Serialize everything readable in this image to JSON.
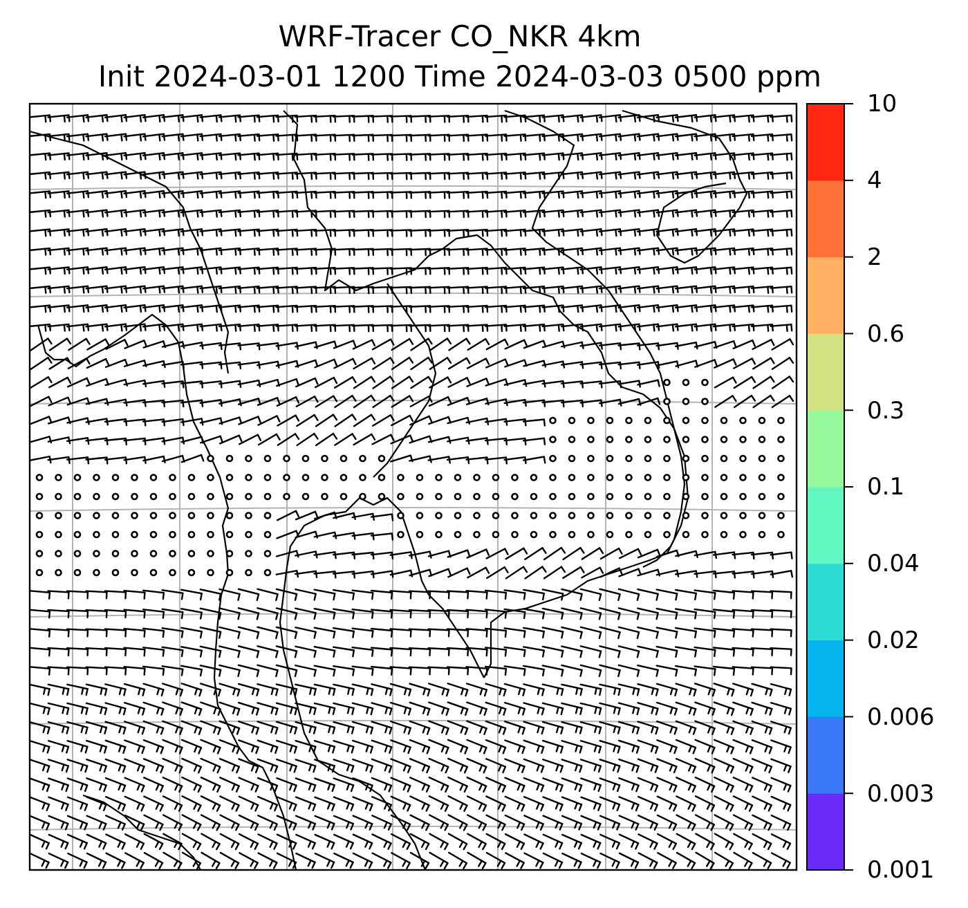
{
  "title": {
    "line1": "WRF-Tracer CO_NKR 4km",
    "line2": "Init 2024-03-01 1200 Time 2024-03-03 0500 ppm"
  },
  "colorbar": {
    "levels": [
      "0.001",
      "0.003",
      "0.006",
      "0.02",
      "0.04",
      "0.1",
      "0.3",
      "0.6",
      "2",
      "4",
      "10"
    ],
    "colors": [
      "#6a2bfa",
      "#3a78f5",
      "#05b3ef",
      "#2ddcd6",
      "#62f6c0",
      "#96f99b",
      "#d2e282",
      "#ffb060",
      "#ff7339",
      "#ff2713"
    ]
  },
  "map": {
    "background": "#ffffff",
    "gridline_color": "#b3b3b3",
    "coastline_color": "#000000",
    "barb_color": "#000000",
    "wind_field": "wind barbs (northerly-westerly flow), calm circles over central region"
  }
}
